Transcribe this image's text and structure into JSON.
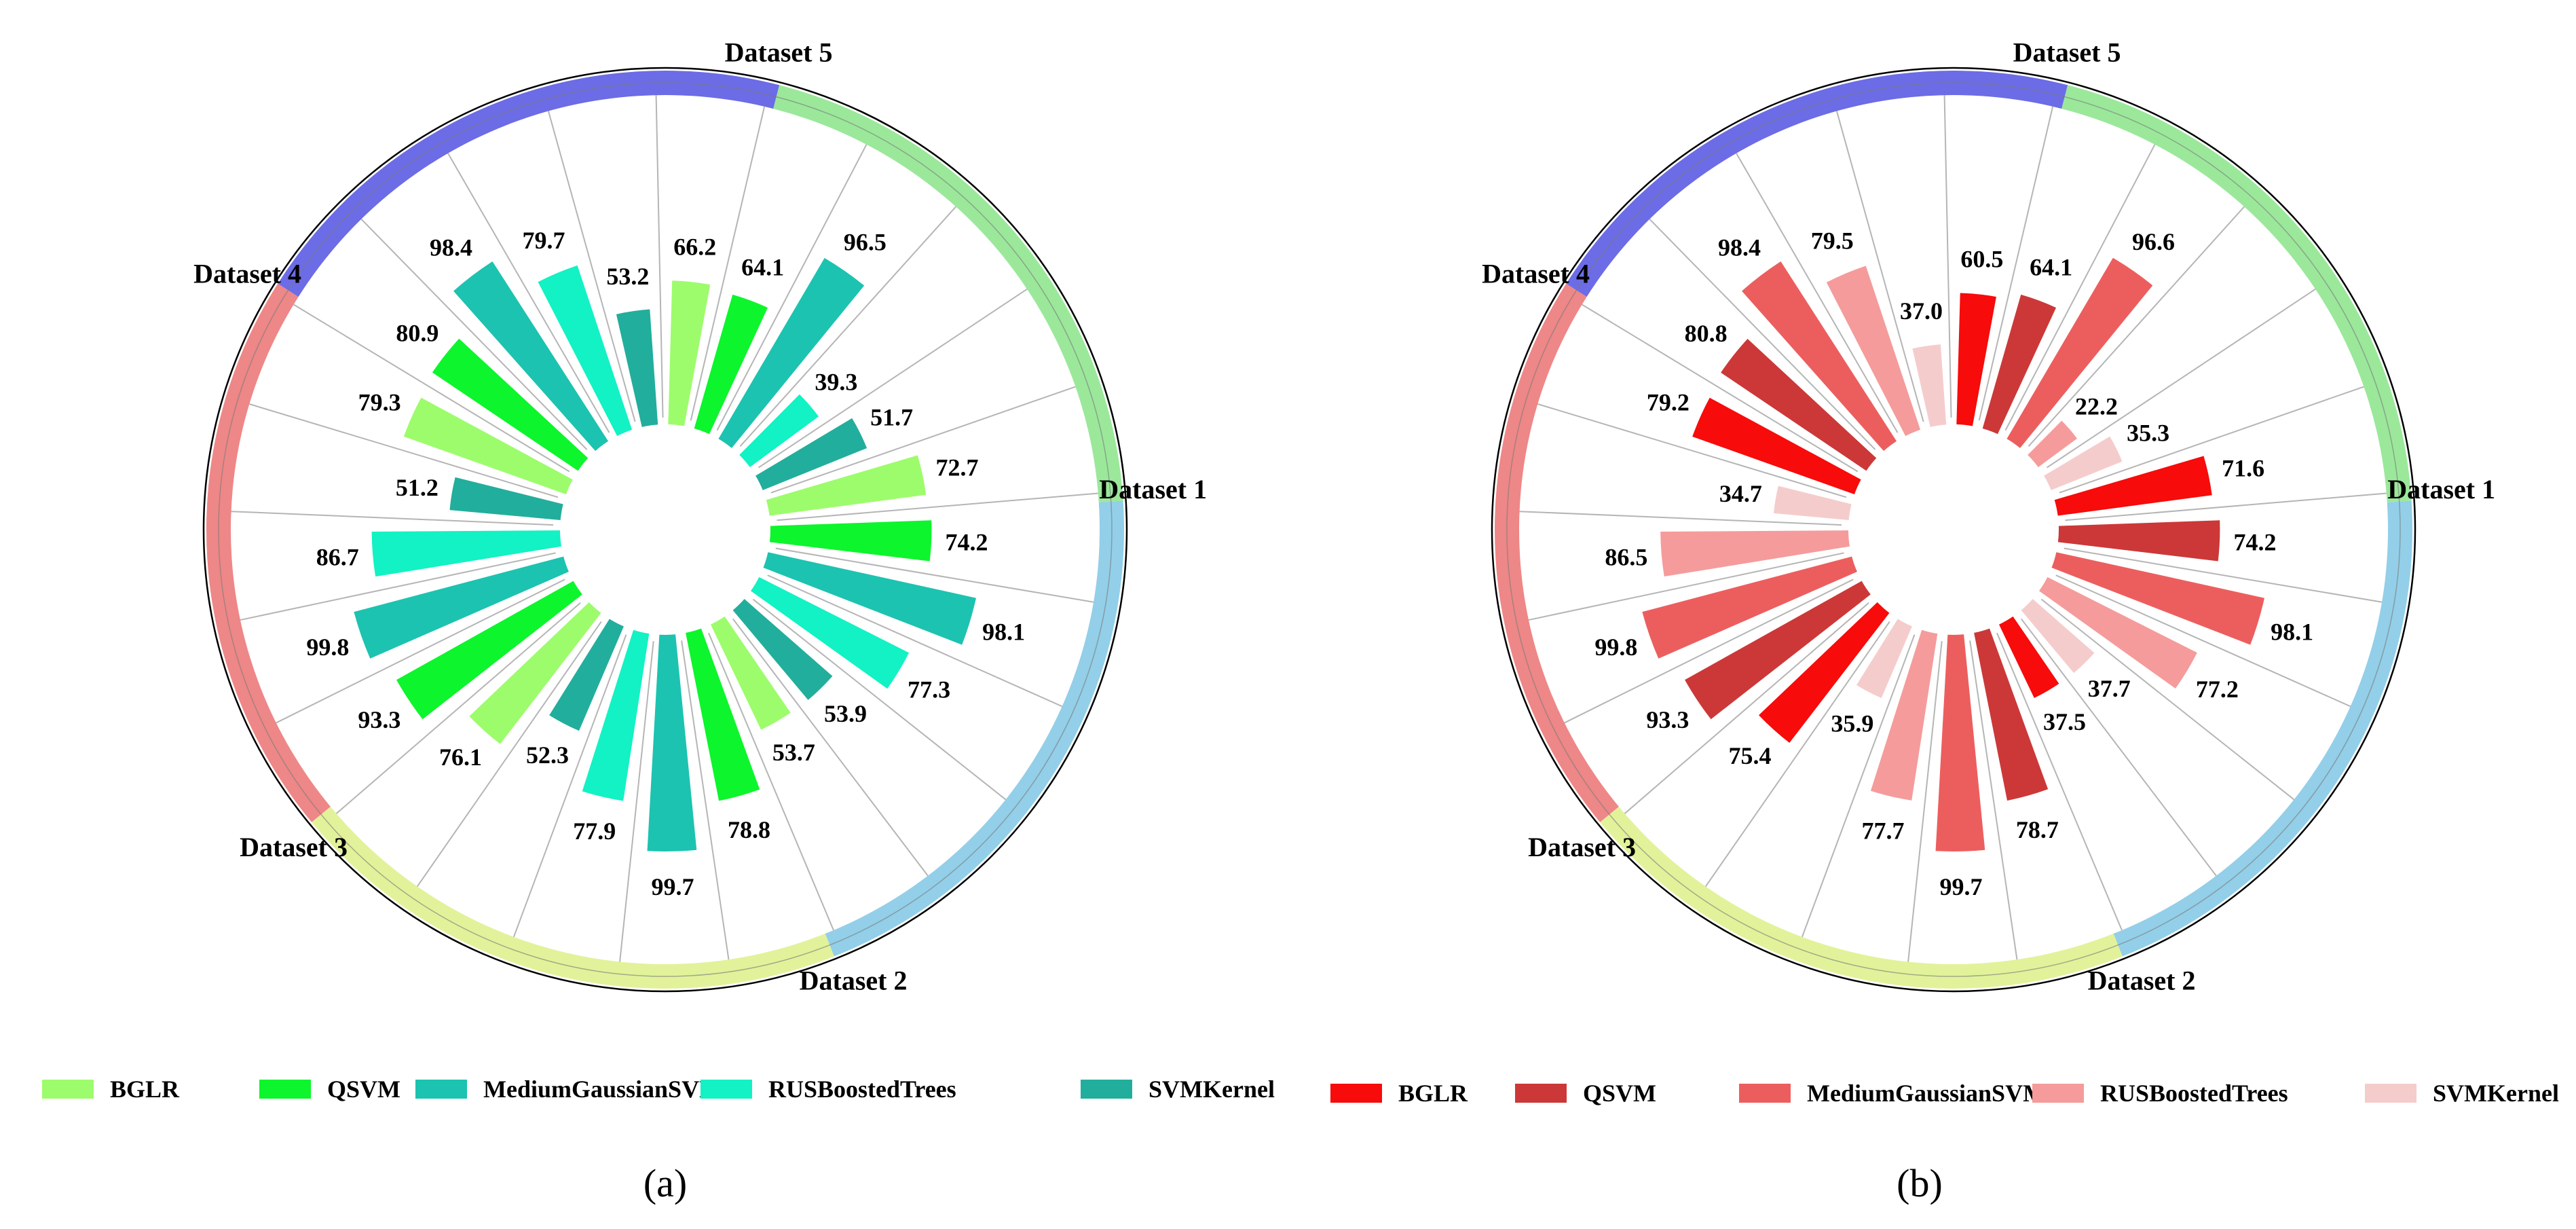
{
  "chart_data": [
    {
      "type": "radial-bar",
      "panel_label": "(a)",
      "datasets": [
        "Dataset 1",
        "Dataset 2",
        "Dataset 3",
        "Dataset 4",
        "Dataset 5"
      ],
      "dataset_colors": [
        "#9be89b",
        "#93cfe8",
        "#e2f29a",
        "#ee8787",
        "#6c6ce6"
      ],
      "series": [
        {
          "name": "BGLR",
          "color": "#9dfc6c",
          "values": [
            72.7,
            53.7,
            76.1,
            79.3,
            66.2
          ]
        },
        {
          "name": "QSVM",
          "color": "#0df52c",
          "values": [
            74.2,
            78.8,
            93.3,
            80.9,
            64.1
          ]
        },
        {
          "name": "MediumGaussianSVM",
          "color": "#1cc3b0",
          "values": [
            98.1,
            99.7,
            99.8,
            98.4,
            96.5
          ]
        },
        {
          "name": "RUSBoostedTrees",
          "color": "#12f2c4",
          "values": [
            77.3,
            77.9,
            86.7,
            79.7,
            39.3
          ]
        },
        {
          "name": "SVMKernel",
          "color": "#22ae9c",
          "values": [
            53.9,
            52.3,
            51.2,
            53.2,
            51.7
          ]
        }
      ]
    },
    {
      "type": "radial-bar",
      "panel_label": "(b)",
      "datasets": [
        "Dataset 1",
        "Dataset 2",
        "Dataset 3",
        "Dataset 4",
        "Dataset 5"
      ],
      "dataset_colors": [
        "#9be89b",
        "#93cfe8",
        "#e2f29a",
        "#ee8787",
        "#6c6ce6"
      ],
      "series": [
        {
          "name": "BGLR",
          "color": "#f70b0b",
          "values": [
            71.6,
            37.5,
            75.4,
            79.2,
            60.5
          ]
        },
        {
          "name": "QSVM",
          "color": "#cc3838",
          "values": [
            74.2,
            78.7,
            93.3,
            80.8,
            64.1
          ]
        },
        {
          "name": "MediumGaussianSVM",
          "color": "#ec5e5e",
          "values": [
            98.1,
            99.7,
            99.8,
            98.4,
            96.6
          ]
        },
        {
          "name": "RUSBoostedTrees",
          "color": "#f59b9b",
          "values": [
            77.2,
            77.7,
            86.5,
            79.5,
            22.2
          ]
        },
        {
          "name": "SVMKernel",
          "color": "#f5cccc",
          "values": [
            37.7,
            35.9,
            34.7,
            37.0,
            35.3
          ]
        }
      ]
    }
  ]
}
